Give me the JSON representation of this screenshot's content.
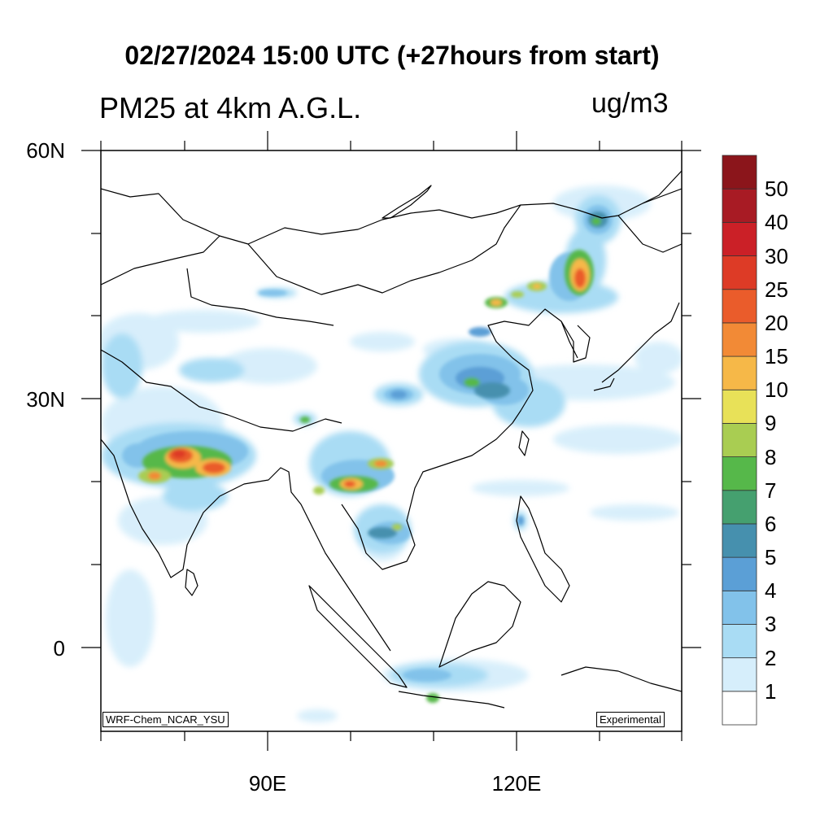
{
  "header": {
    "title": "02/27/2024 15:00 UTC (+27hours from start)",
    "variable": "PM25 at 4km A.G.L.",
    "units": "ug/m3"
  },
  "map": {
    "lat_labels": [
      "60N",
      "30N",
      "0"
    ],
    "lon_labels": [
      "90E",
      "120E"
    ],
    "model_label": "WRF-Chem_NCAR_YSU",
    "status_label": "Experimental"
  },
  "colorbar": {
    "levels": [
      "1",
      "2",
      "3",
      "4",
      "5",
      "6",
      "7",
      "8",
      "9",
      "10",
      "15",
      "20",
      "25",
      "30",
      "40",
      "50"
    ],
    "colors": [
      "#ffffff",
      "#d6eefb",
      "#a9dcf4",
      "#82c2ea",
      "#5b9fd6",
      "#4690ae",
      "#45a06f",
      "#56b84a",
      "#a9cd52",
      "#e8e158",
      "#f6b848",
      "#f28a36",
      "#ea5c2b",
      "#dd3b26",
      "#cb2027",
      "#a81b24",
      "#8b151b"
    ]
  }
}
